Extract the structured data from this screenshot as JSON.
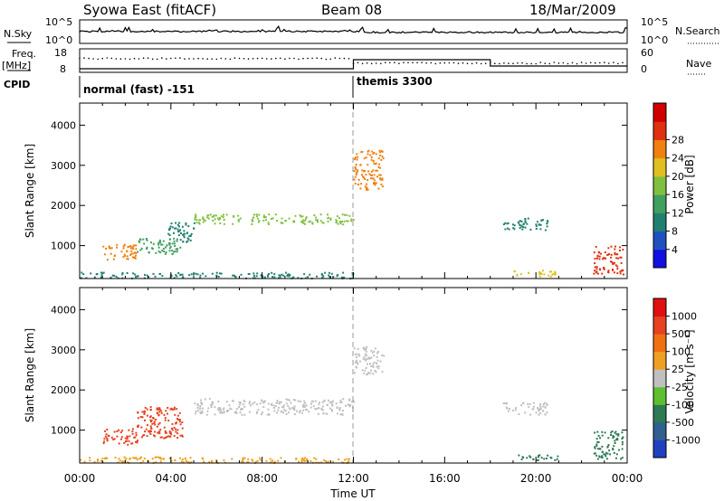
{
  "header": {
    "station": "Syowa East (fitACF)",
    "beam": "Beam 08",
    "date": "18/Mar/2009"
  },
  "top_panels": {
    "nsky_label": "N.Sky",
    "nsky_ticks": [
      "10^5",
      "10^0"
    ],
    "nsearch_label": "N.Search",
    "nsearch_ticks": [
      "10^5",
      "10^0"
    ],
    "freq_label": "Freq.",
    "freq_unit": "[MHz]",
    "freq_ticks": [
      "18",
      "8"
    ],
    "nave_label": "Nave",
    "nave_ticks": [
      "60",
      "0"
    ],
    "cpid_label": "CPID",
    "cpid_segments": [
      {
        "label": "normal (fast) -151",
        "start_hour": 0,
        "end_hour": 12
      },
      {
        "label": "themis 3300",
        "start_hour": 12,
        "end_hour": 24
      }
    ]
  },
  "axes": {
    "ylabel": "Slant Range [km]",
    "xlabel": "Time UT",
    "y_ticks": [
      "1000",
      "2000",
      "3000",
      "4000"
    ],
    "x_ticks": [
      "00:00",
      "04:00",
      "08:00",
      "12:00",
      "16:00",
      "20:00",
      "00:00"
    ]
  },
  "colorbars": {
    "power": {
      "label": "Power [dB]",
      "ticks": [
        "4",
        "8",
        "12",
        "16",
        "20",
        "24",
        "28"
      ],
      "colors": [
        "#1010e0",
        "#2050c0",
        "#208070",
        "#40a060",
        "#80c040",
        "#e0c020",
        "#f08010",
        "#e03010",
        "#d00000"
      ]
    },
    "velocity": {
      "label": "Velocity  [m s⁻¹]",
      "ticks": [
        "1000",
        "500",
        "100",
        "25",
        "-25",
        "-100",
        "-500",
        "-1000"
      ],
      "colors": [
        "#2040c0",
        "#306090",
        "#2e7a55",
        "#5cc030",
        "#c0c0c0",
        "#f0a020",
        "#f07010",
        "#e84020",
        "#e01010"
      ]
    }
  },
  "chart_data": [
    {
      "type": "heatmap",
      "title": "Power",
      "xlabel": "Time UT",
      "ylabel": "Slant Range [km]",
      "xlim": [
        0,
        24
      ],
      "ylim": [
        180,
        4550
      ],
      "regions": [
        {
          "t0": 0.0,
          "t1": 12.0,
          "r0": 200,
          "r1": 350,
          "level": 2
        },
        {
          "t0": 1.0,
          "t1": 2.5,
          "r0": 650,
          "r1": 1050,
          "level": 6
        },
        {
          "t0": 2.5,
          "t1": 4.5,
          "r0": 800,
          "r1": 1200,
          "level": 3
        },
        {
          "t0": 3.8,
          "t1": 5.0,
          "r0": 1100,
          "r1": 1600,
          "level": 2
        },
        {
          "t0": 5.0,
          "t1": 12.0,
          "r0": 1550,
          "r1": 1800,
          "level": 4
        },
        {
          "t0": 12.0,
          "t1": 13.3,
          "r0": 2400,
          "r1": 3400,
          "level": 6
        },
        {
          "t0": 18.5,
          "t1": 20.5,
          "r0": 1400,
          "r1": 1700,
          "level": 2
        },
        {
          "t0": 19.0,
          "t1": 21.0,
          "r0": 250,
          "r1": 400,
          "level": 5
        },
        {
          "t0": 22.5,
          "t1": 23.8,
          "r0": 300,
          "r1": 1000,
          "level": 7
        }
      ]
    },
    {
      "type": "heatmap",
      "title": "Velocity",
      "xlabel": "Time UT",
      "ylabel": "Slant Range [km]",
      "xlim": [
        0,
        24
      ],
      "ylim": [
        180,
        4550
      ],
      "regions": [
        {
          "t0": 0.0,
          "t1": 12.0,
          "r0": 200,
          "r1": 350,
          "level": 5
        },
        {
          "t0": 1.0,
          "t1": 2.5,
          "r0": 650,
          "r1": 1050,
          "level": 7
        },
        {
          "t0": 2.5,
          "t1": 4.5,
          "r0": 800,
          "r1": 1600,
          "level": 7
        },
        {
          "t0": 5.0,
          "t1": 12.0,
          "r0": 1400,
          "r1": 1800,
          "level": 4
        },
        {
          "t0": 12.0,
          "t1": 13.3,
          "r0": 2400,
          "r1": 3100,
          "level": 4
        },
        {
          "t0": 18.5,
          "t1": 20.5,
          "r0": 1400,
          "r1": 1700,
          "level": 4
        },
        {
          "t0": 19.0,
          "t1": 21.0,
          "r0": 250,
          "r1": 400,
          "level": 2
        },
        {
          "t0": 22.5,
          "t1": 23.8,
          "r0": 300,
          "r1": 1000,
          "level": 2
        }
      ]
    }
  ]
}
